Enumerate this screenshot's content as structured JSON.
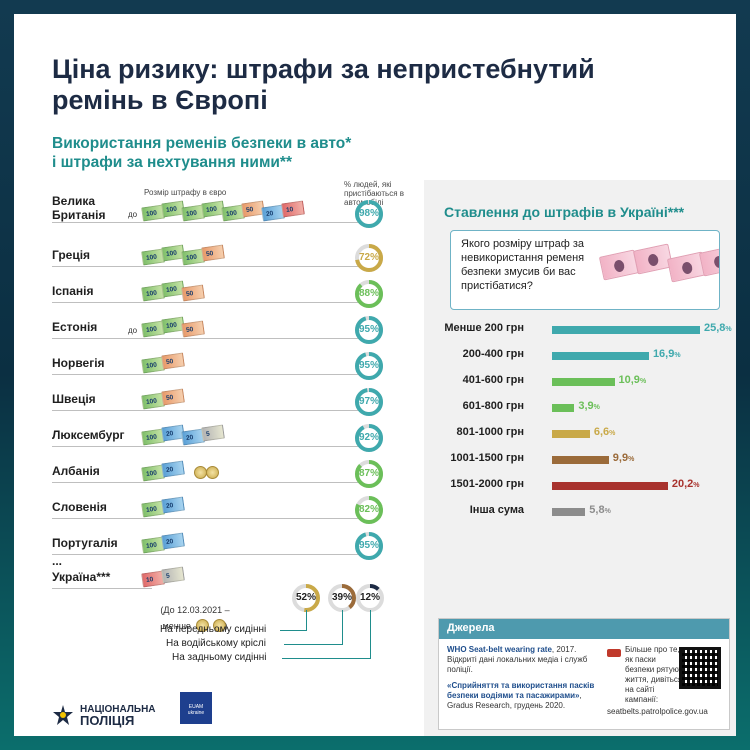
{
  "title": "Ціна ризику: штрафи за непристебнутий ремінь в Європі",
  "subtitle_line1": "Використання ременів безпеки в авто*",
  "subtitle_line2": "і штрафи за нехтування ними**",
  "header_fine": "Розмір штрафу в євро",
  "header_pct": "% людей, які пристібаються в автомобілі",
  "prefix_up_to": "до",
  "countries": [
    {
      "name": "Велика Британія",
      "prefix": "до",
      "pct": 98,
      "pct_label": "98%",
      "color": "#3fa9ad",
      "bills": [
        "100",
        "100",
        "100",
        "100",
        "100",
        "50",
        "20",
        "10"
      ]
    },
    {
      "name": "Греція",
      "prefix": "",
      "pct": 72,
      "pct_label": "72%",
      "color": "#c9a948",
      "bills": [
        "100",
        "100",
        "100",
        "50"
      ]
    },
    {
      "name": "Іспанія",
      "prefix": "",
      "pct": 88,
      "pct_label": "88%",
      "color": "#6bbf59",
      "bills": [
        "100",
        "100",
        "50"
      ]
    },
    {
      "name": "Естонія",
      "prefix": "до",
      "pct": 95,
      "pct_label": "95%",
      "color": "#3fa9ad",
      "bills": [
        "100",
        "100",
        "50"
      ]
    },
    {
      "name": "Норвегія",
      "prefix": "",
      "pct": 95,
      "pct_label": "95%",
      "color": "#3fa9ad",
      "bills": [
        "100",
        "50"
      ]
    },
    {
      "name": "Швеція",
      "prefix": "",
      "pct": 97,
      "pct_label": "97%",
      "color": "#3fa9ad",
      "bills": [
        "100",
        "50"
      ]
    },
    {
      "name": "Люксембург",
      "prefix": "",
      "pct": 92,
      "pct_label": "92%",
      "color": "#3fa9ad",
      "bills": [
        "100",
        "20",
        "20",
        "5"
      ]
    },
    {
      "name": "Албанія",
      "prefix": "",
      "pct": 87,
      "pct_label": "87%",
      "color": "#6bbf59",
      "bills": [
        "100",
        "20"
      ],
      "coins": 2
    },
    {
      "name": "Словенія",
      "prefix": "",
      "pct": 82,
      "pct_label": "82%",
      "color": "#6bbf59",
      "bills": [
        "100",
        "20"
      ]
    },
    {
      "name": "Португалія",
      "prefix": "",
      "pct": 95,
      "pct_label": "95%",
      "color": "#3fa9ad",
      "bills": [
        "100",
        "20"
      ]
    }
  ],
  "ellipsis": "...",
  "ukraine": {
    "name": "Україна***",
    "bills": [
      "10",
      "5"
    ],
    "note_line1": "(До 12.03.2021 –",
    "note_line2": "менше",
    "rings": [
      {
        "pct": 52,
        "label": "52%",
        "color": "#c9a948"
      },
      {
        "pct": 39,
        "label": "39%",
        "color": "#9b6b3a"
      },
      {
        "pct": 12,
        "label": "12%",
        "color": "#1d2b44"
      }
    ],
    "seats": [
      "На передньому сидінні",
      "На водійському кріслі",
      "На задньому сидінні"
    ]
  },
  "logo_text_line1": "НАЦІОНАЛЬНА",
  "logo_text_line2": "ПОЛІЦІЯ",
  "euam_text": "EUAM ukraine",
  "panel": {
    "title": "Ставлення до штрафів в Україні***",
    "question": "Якого розміру штраф за невикористання ременя безпеки змусив би вас пристібатися?",
    "bars": [
      {
        "label": "Менше 200 грн",
        "value": 25.8,
        "value_text": "25,8",
        "color": "#3fa9ad"
      },
      {
        "label": "200-400 грн",
        "value": 16.9,
        "value_text": "16,9",
        "color": "#3fa9ad"
      },
      {
        "label": "401-600 грн",
        "value": 10.9,
        "value_text": "10,9",
        "color": "#6bbf59"
      },
      {
        "label": "601-800 грн",
        "value": 3.9,
        "value_text": "3,9",
        "color": "#6bbf59"
      },
      {
        "label": "801-1000 грн",
        "value": 6.6,
        "value_text": "6,6",
        "color": "#c9a948"
      },
      {
        "label": "1001-1500 грн",
        "value": 9.9,
        "value_text": "9,9",
        "color": "#9b6b3a"
      },
      {
        "label": "1501-2000 грн",
        "value": 20.2,
        "value_text": "20,2",
        "color": "#a8322d"
      },
      {
        "label": "Інша сума",
        "value": 5.8,
        "value_text": "5,8",
        "color": "#8c8c8c"
      }
    ],
    "pct_suffix": "%",
    "sources_title": "Джерела",
    "src1_bold": "WHO Seat-belt wearing rate",
    "src1_rest": ", 2017. Відкриті дані локальних медіа і служб поліції.",
    "src2_bold": "«Сприйняття та використання пасків безпеки водіями та пасажирами»",
    "src2_rest": ", Gradus Research, грудень 2020.",
    "src3": "Більше про те, як паски безпеки рятують життя, дивіться на сайті кампанії:",
    "src3_url": "seatbelts.patrolpolice.gov.ua"
  }
}
